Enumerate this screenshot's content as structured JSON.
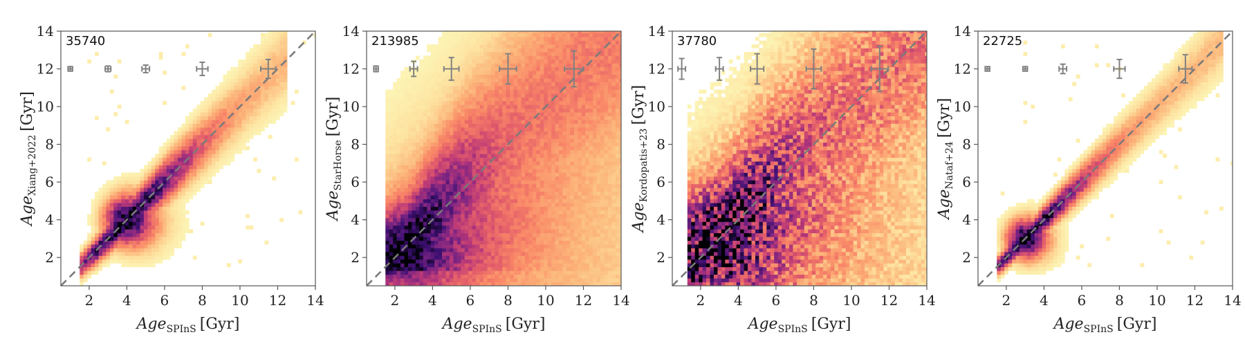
{
  "chart_data": [
    {
      "type": "heatmap",
      "title": "",
      "count": "35740",
      "xlabel_main": "Age",
      "xlabel_sub": "SPInS",
      "xlabel_unit": "[Gyr]",
      "ylabel_main": "Age",
      "ylabel_sub": "Xiang+2022",
      "ylabel_unit": "[Gyr]",
      "xlim": [
        0.5,
        14
      ],
      "ylim": [
        0.5,
        14
      ],
      "xticks": [
        2,
        4,
        6,
        8,
        10,
        12,
        14
      ],
      "yticks": [
        2,
        4,
        6,
        8,
        10,
        12,
        14
      ],
      "one_to_one_line": true,
      "density": {
        "mode": "tight",
        "scatter_slope": 0.08,
        "scatter_base": 0.25,
        "core_x": 4.0,
        "core_y": 4.0,
        "core_strength": 1.0,
        "bias": 0.0,
        "xmin": 1.5,
        "xmax": 12.5
      },
      "error_bars": [
        {
          "x": 1.0,
          "y": 12.0,
          "xerr": 0.12,
          "yerr": 0.12
        },
        {
          "x": 3.0,
          "y": 12.0,
          "xerr": 0.15,
          "yerr": 0.15
        },
        {
          "x": 5.0,
          "y": 12.0,
          "xerr": 0.2,
          "yerr": 0.2
        },
        {
          "x": 8.0,
          "y": 12.0,
          "xerr": 0.3,
          "yerr": 0.35
        },
        {
          "x": 11.5,
          "y": 12.0,
          "xerr": 0.4,
          "yerr": 0.5
        }
      ]
    },
    {
      "type": "heatmap",
      "title": "",
      "count": "213985",
      "xlabel_main": "Age",
      "xlabel_sub": "SPInS",
      "xlabel_unit": "[Gyr]",
      "ylabel_main": "Age",
      "ylabel_sub": "StarHorse",
      "ylabel_unit": "[Gyr]",
      "xlim": [
        0.5,
        14
      ],
      "ylim": [
        0.5,
        14
      ],
      "xticks": [
        2,
        4,
        6,
        8,
        10,
        12,
        14
      ],
      "yticks": [
        2,
        4,
        6,
        8,
        10,
        12,
        14
      ],
      "one_to_one_line": true,
      "density": {
        "mode": "broad",
        "scatter_slope": 0.35,
        "scatter_base": 0.6,
        "core_x": 2.3,
        "core_y": 2.3,
        "core_strength": 1.0,
        "bias": 0.0,
        "xmin": 1.5,
        "xmax": 14
      },
      "error_bars": [
        {
          "x": 1.0,
          "y": 12.0,
          "xerr": 0.12,
          "yerr": 0.15
        },
        {
          "x": 3.0,
          "y": 12.0,
          "xerr": 0.2,
          "yerr": 0.4
        },
        {
          "x": 5.0,
          "y": 12.0,
          "xerr": 0.4,
          "yerr": 0.6
        },
        {
          "x": 8.0,
          "y": 12.0,
          "xerr": 0.45,
          "yerr": 0.8
        },
        {
          "x": 11.5,
          "y": 12.0,
          "xerr": 0.5,
          "yerr": 0.95
        }
      ]
    },
    {
      "type": "heatmap",
      "title": "",
      "count": "37780",
      "xlabel_main": "Age",
      "xlabel_sub": "SPInS",
      "xlabel_unit": "[Gyr]",
      "ylabel_main": "Age",
      "ylabel_sub": "Kordopatis+23",
      "ylabel_unit": "[Gyr]",
      "xlim": [
        0.5,
        14
      ],
      "ylim": [
        0.5,
        14
      ],
      "xticks": [
        2,
        4,
        6,
        8,
        10,
        12,
        14
      ],
      "yticks": [
        2,
        4,
        6,
        8,
        10,
        12,
        14
      ],
      "one_to_one_line": true,
      "density": {
        "mode": "noisy",
        "scatter_slope": 0.3,
        "scatter_base": 1.0,
        "core_x": 2.6,
        "core_y": 2.8,
        "core_strength": 1.0,
        "bias": 0.0,
        "xmin": 1.3,
        "xmax": 14
      },
      "error_bars": [
        {
          "x": 1.0,
          "y": 12.0,
          "xerr": 0.2,
          "yerr": 0.55
        },
        {
          "x": 3.0,
          "y": 12.0,
          "xerr": 0.2,
          "yerr": 0.6
        },
        {
          "x": 5.0,
          "y": 12.0,
          "xerr": 0.35,
          "yerr": 0.8
        },
        {
          "x": 8.0,
          "y": 12.0,
          "xerr": 0.4,
          "yerr": 1.05
        },
        {
          "x": 11.5,
          "y": 12.0,
          "xerr": 0.45,
          "yerr": 1.2
        }
      ]
    },
    {
      "type": "heatmap",
      "title": "",
      "count": "22725",
      "xlabel_main": "Age",
      "xlabel_sub": "SPInS",
      "xlabel_unit": "[Gyr]",
      "ylabel_main": "Age",
      "ylabel_sub": "Nataf+24",
      "ylabel_unit": "[Gyr]",
      "xlim": [
        0.5,
        14
      ],
      "ylim": [
        0.5,
        14
      ],
      "xticks": [
        2,
        4,
        6,
        8,
        10,
        12,
        14
      ],
      "yticks": [
        2,
        4,
        6,
        8,
        10,
        12,
        14
      ],
      "one_to_one_line": true,
      "density": {
        "mode": "tight",
        "scatter_slope": 0.06,
        "scatter_base": 0.2,
        "core_x": 3.0,
        "core_y": 3.0,
        "core_strength": 1.0,
        "bias": 0.0,
        "xmin": 1.5,
        "xmax": 13.5
      },
      "error_bars": [
        {
          "x": 1.0,
          "y": 12.0,
          "xerr": 0.12,
          "yerr": 0.12
        },
        {
          "x": 3.0,
          "y": 12.0,
          "xerr": 0.12,
          "yerr": 0.12
        },
        {
          "x": 5.0,
          "y": 12.0,
          "xerr": 0.2,
          "yerr": 0.25
        },
        {
          "x": 8.0,
          "y": 12.0,
          "xerr": 0.3,
          "yerr": 0.5
        },
        {
          "x": 11.5,
          "y": 12.0,
          "xerr": 0.35,
          "yerr": 0.75
        }
      ]
    }
  ],
  "colormap": [
    "#fcfdbf",
    "#fde2a0",
    "#fcb57a",
    "#f98767",
    "#e35d6a",
    "#b73779",
    "#7a2482",
    "#3b0f70",
    "#000004"
  ]
}
